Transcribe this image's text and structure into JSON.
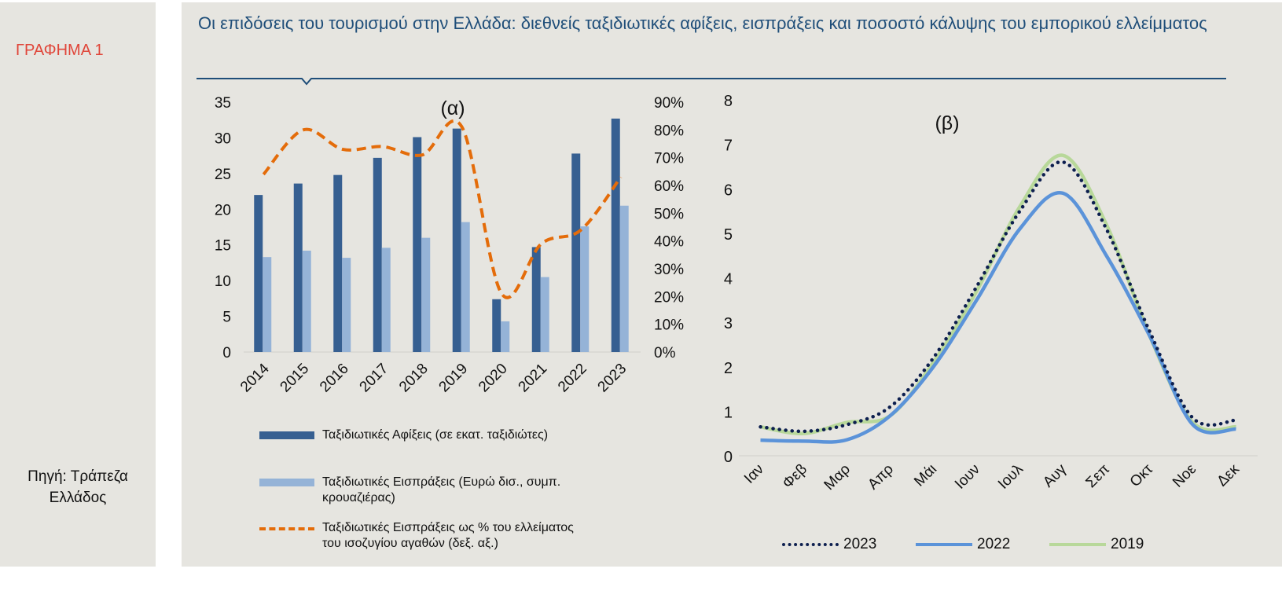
{
  "side": {
    "figure_label": "ΓΡΑΦΗΜΑ 1",
    "source_line1": "Πηγή: Τράπεζα",
    "source_line2": "Ελλάδος"
  },
  "title": "Οι επιδόσεις του τουρισμού στην Ελλάδα: διεθνείς ταξιδιωτικές αφίξεις, εισπράξεις και ποσοστό κάλυψης του εμπορικού ελλείμματος",
  "colors": {
    "arrivals": "#365f91",
    "receipts": "#95b3d7",
    "share": "#e46c0a",
    "s2023": "#0d1f4f",
    "s2022": "#5b93d9",
    "s2019": "#b8d89a",
    "title": "#1f4e79"
  },
  "chart_data": [
    {
      "type": "bar",
      "title": "(α)",
      "categories": [
        "2014",
        "2015",
        "2016",
        "2017",
        "2018",
        "2019",
        "2020",
        "2021",
        "2022",
        "2023"
      ],
      "ylim": [
        0,
        35
      ],
      "yticks": [
        "0",
        "5",
        "10",
        "15",
        "20",
        "25",
        "30",
        "35"
      ],
      "y2lim": [
        0,
        90
      ],
      "y2ticks": [
        "0%",
        "10%",
        "20%",
        "30%",
        "40%",
        "50%",
        "60%",
        "70%",
        "80%",
        "90%"
      ],
      "series": [
        {
          "name": "Ταξιδιωτικές Αφίξεις (σε εκατ. ταξιδιώτες)",
          "kind": "bar",
          "values": [
            22.0,
            23.6,
            24.8,
            27.2,
            30.1,
            31.3,
            7.4,
            14.7,
            27.8,
            32.7
          ]
        },
        {
          "name_line1": "Ταξιδιωτικές Εισπράξεις (Ευρώ δισ., συμπ.",
          "name_line2": "κρουαζιέρας)",
          "kind": "bar",
          "values": [
            13.3,
            14.2,
            13.2,
            14.6,
            16.0,
            18.2,
            4.3,
            10.5,
            17.6,
            20.5
          ]
        },
        {
          "name_line1": "Ταξιδιωτικές Εισπράξεις ως % του ελλείματος",
          "name_line2": "του ισοζυγίου αγαθών (δεξ. αξ.)",
          "kind": "dashed-line",
          "axis": "right",
          "values": [
            64,
            80,
            73,
            74,
            71,
            81,
            21,
            39,
            44,
            63
          ]
        }
      ]
    },
    {
      "type": "line",
      "title": "(β)",
      "categories": [
        "Ιαν",
        "Φεβ",
        "Μαρ",
        "Απρ",
        "Μάι",
        "Ιουν",
        "Ιουλ",
        "Αυγ",
        "Σεπ",
        "Οκτ",
        "Νοε",
        "Δεκ"
      ],
      "ylim": [
        0,
        8
      ],
      "yticks": [
        "0",
        "1",
        "2",
        "3",
        "4",
        "5",
        "6",
        "7",
        "8"
      ],
      "series": [
        {
          "name": "2023",
          "style": "dotted",
          "values": [
            0.65,
            0.55,
            0.7,
            1.1,
            2.2,
            3.8,
            5.5,
            6.6,
            5.1,
            2.8,
            0.85,
            0.8
          ]
        },
        {
          "name": "2022",
          "style": "solid",
          "values": [
            0.35,
            0.33,
            0.36,
            0.9,
            2.0,
            3.5,
            5.1,
            5.9,
            4.5,
            2.7,
            0.7,
            0.6
          ]
        },
        {
          "name": "2019",
          "style": "solid",
          "values": [
            0.65,
            0.5,
            0.75,
            0.9,
            2.1,
            3.7,
            5.6,
            6.75,
            5.2,
            2.7,
            0.75,
            0.65
          ]
        }
      ]
    }
  ]
}
